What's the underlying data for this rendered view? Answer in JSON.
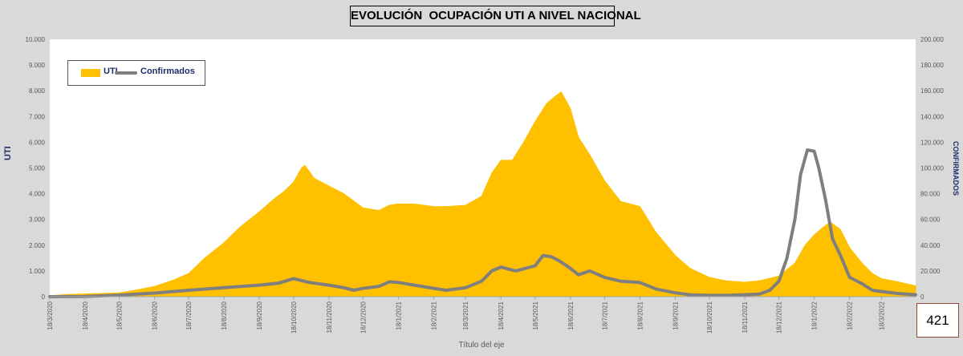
{
  "title": "EVOLUCIÓN  OCUPACIÓN UTI A NIVEL NACIONAL",
  "counter_value": "421",
  "chart_data": {
    "type": "area",
    "title": "EVOLUCIÓN  OCUPACIÓN UTI A NIVEL NACIONAL",
    "xlabel": "Título del eje",
    "ylabel": "UTI",
    "ylabel_right": "CONFIRMADOS",
    "ylim": [
      0,
      10000
    ],
    "ylim_right": [
      0,
      200000
    ],
    "yticks": [
      "0",
      "1.000",
      "2.000",
      "3.000",
      "4.000",
      "5.000",
      "6.000",
      "7.000",
      "8.000",
      "9.000",
      "10.000"
    ],
    "yticks_right": [
      "0",
      "20.000",
      "40.000",
      "60.000",
      "80.000",
      "100.000",
      "120.000",
      "140.000",
      "160.000",
      "180.000",
      "200.000"
    ],
    "x_start": "2020-03-18",
    "x_end": "2022-04-17",
    "categories": [
      "18/3/2020",
      "18/4/2020",
      "18/5/2020",
      "18/6/2020",
      "18/7/2020",
      "18/8/2020",
      "18/9/2020",
      "18/10/2020",
      "18/11/2020",
      "18/12/2020",
      "18/1/2021",
      "18/2/2021",
      "18/3/2021",
      "18/4/2021",
      "18/5/2021",
      "18/6/2021",
      "18/7/2021",
      "18/8/2021",
      "18/9/2021",
      "18/10/2021",
      "18/11/2021",
      "18/12/2021",
      "18/1/2022",
      "18/2/2022",
      "18/3/2022"
    ],
    "legend": {
      "placement": "top-left",
      "items": [
        "UTI",
        "Confirmados"
      ]
    },
    "grid": false,
    "colors": {
      "uti": "#ffc000",
      "confirmados": "#7f7f7f",
      "background": "#d9d9d9",
      "plot_background": "#ffffff"
    },
    "series": [
      {
        "name": "UTI",
        "axis": "left",
        "type": "area",
        "points": [
          [
            "2020-03-18",
            30
          ],
          [
            "2020-04-01",
            80
          ],
          [
            "2020-04-18",
            110
          ],
          [
            "2020-05-18",
            150
          ],
          [
            "2020-06-01",
            250
          ],
          [
            "2020-06-18",
            400
          ],
          [
            "2020-07-05",
            650
          ],
          [
            "2020-07-18",
            900
          ],
          [
            "2020-08-01",
            1500
          ],
          [
            "2020-08-18",
            2100
          ],
          [
            "2020-09-01",
            2700
          ],
          [
            "2020-09-18",
            3300
          ],
          [
            "2020-10-01",
            3800
          ],
          [
            "2020-10-10",
            4100
          ],
          [
            "2020-10-18",
            4450
          ],
          [
            "2020-10-25",
            5000
          ],
          [
            "2020-10-28",
            5100
          ],
          [
            "2020-11-05",
            4600
          ],
          [
            "2020-11-18",
            4300
          ],
          [
            "2020-12-01",
            4000
          ],
          [
            "2020-12-18",
            3450
          ],
          [
            "2021-01-01",
            3350
          ],
          [
            "2021-01-10",
            3550
          ],
          [
            "2021-01-18",
            3600
          ],
          [
            "2021-02-01",
            3600
          ],
          [
            "2021-02-18",
            3500
          ],
          [
            "2021-03-01",
            3500
          ],
          [
            "2021-03-18",
            3550
          ],
          [
            "2021-04-01",
            3900
          ],
          [
            "2021-04-10",
            4800
          ],
          [
            "2021-04-18",
            5300
          ],
          [
            "2021-04-28",
            5300
          ],
          [
            "2021-05-08",
            6000
          ],
          [
            "2021-05-18",
            6800
          ],
          [
            "2021-05-28",
            7500
          ],
          [
            "2021-06-05",
            7800
          ],
          [
            "2021-06-10",
            7950
          ],
          [
            "2021-06-18",
            7300
          ],
          [
            "2021-06-25",
            6200
          ],
          [
            "2021-07-05",
            5500
          ],
          [
            "2021-07-18",
            4500
          ],
          [
            "2021-08-01",
            3700
          ],
          [
            "2021-08-18",
            3500
          ],
          [
            "2021-09-01",
            2500
          ],
          [
            "2021-09-18",
            1600
          ],
          [
            "2021-10-01",
            1100
          ],
          [
            "2021-10-18",
            750
          ],
          [
            "2021-11-01",
            620
          ],
          [
            "2021-11-18",
            560
          ],
          [
            "2021-12-01",
            620
          ],
          [
            "2021-12-18",
            800
          ],
          [
            "2022-01-01",
            1300
          ],
          [
            "2022-01-10",
            2000
          ],
          [
            "2022-01-18",
            2400
          ],
          [
            "2022-01-26",
            2700
          ],
          [
            "2022-02-01",
            2900
          ],
          [
            "2022-02-10",
            2600
          ],
          [
            "2022-02-18",
            1900
          ],
          [
            "2022-03-01",
            1300
          ],
          [
            "2022-03-10",
            900
          ],
          [
            "2022-03-18",
            700
          ],
          [
            "2022-04-01",
            580
          ],
          [
            "2022-04-17",
            421
          ]
        ]
      },
      {
        "name": "Confirmados",
        "axis": "right",
        "type": "line",
        "points": [
          [
            "2020-03-18",
            0
          ],
          [
            "2020-04-18",
            200
          ],
          [
            "2020-05-18",
            1200
          ],
          [
            "2020-06-18",
            2800
          ],
          [
            "2020-07-18",
            5000
          ],
          [
            "2020-08-18",
            7000
          ],
          [
            "2020-09-18",
            9000
          ],
          [
            "2020-10-05",
            10500
          ],
          [
            "2020-10-18",
            14000
          ],
          [
            "2020-11-01",
            11000
          ],
          [
            "2020-11-18",
            9000
          ],
          [
            "2020-12-01",
            7000
          ],
          [
            "2020-12-10",
            5000
          ],
          [
            "2020-12-18",
            6500
          ],
          [
            "2021-01-01",
            8000
          ],
          [
            "2021-01-10",
            11500
          ],
          [
            "2021-01-18",
            11000
          ],
          [
            "2021-02-01",
            9000
          ],
          [
            "2021-02-18",
            6500
          ],
          [
            "2021-03-01",
            5000
          ],
          [
            "2021-03-18",
            7000
          ],
          [
            "2021-04-01",
            12000
          ],
          [
            "2021-04-10",
            20000
          ],
          [
            "2021-04-18",
            23000
          ],
          [
            "2021-05-01",
            20000
          ],
          [
            "2021-05-18",
            24000
          ],
          [
            "2021-05-25",
            32000
          ],
          [
            "2021-06-01",
            31000
          ],
          [
            "2021-06-08",
            28000
          ],
          [
            "2021-06-18",
            22000
          ],
          [
            "2021-06-25",
            17000
          ],
          [
            "2021-07-05",
            20000
          ],
          [
            "2021-07-18",
            15000
          ],
          [
            "2021-08-01",
            12000
          ],
          [
            "2021-08-18",
            11000
          ],
          [
            "2021-09-01",
            6000
          ],
          [
            "2021-09-18",
            3000
          ],
          [
            "2021-10-01",
            1500
          ],
          [
            "2021-10-18",
            1000
          ],
          [
            "2021-11-01",
            1000
          ],
          [
            "2021-11-18",
            1500
          ],
          [
            "2021-12-01",
            2000
          ],
          [
            "2021-12-10",
            5000
          ],
          [
            "2021-12-18",
            12000
          ],
          [
            "2021-12-25",
            30000
          ],
          [
            "2022-01-01",
            60000
          ],
          [
            "2022-01-06",
            95000
          ],
          [
            "2022-01-12",
            114000
          ],
          [
            "2022-01-18",
            113000
          ],
          [
            "2022-01-22",
            100000
          ],
          [
            "2022-01-28",
            75000
          ],
          [
            "2022-02-03",
            45000
          ],
          [
            "2022-02-10",
            32000
          ],
          [
            "2022-02-18",
            15000
          ],
          [
            "2022-03-01",
            10000
          ],
          [
            "2022-03-10",
            5000
          ],
          [
            "2022-03-18",
            4000
          ],
          [
            "2022-04-01",
            2500
          ],
          [
            "2022-04-17",
            1500
          ]
        ]
      }
    ]
  }
}
